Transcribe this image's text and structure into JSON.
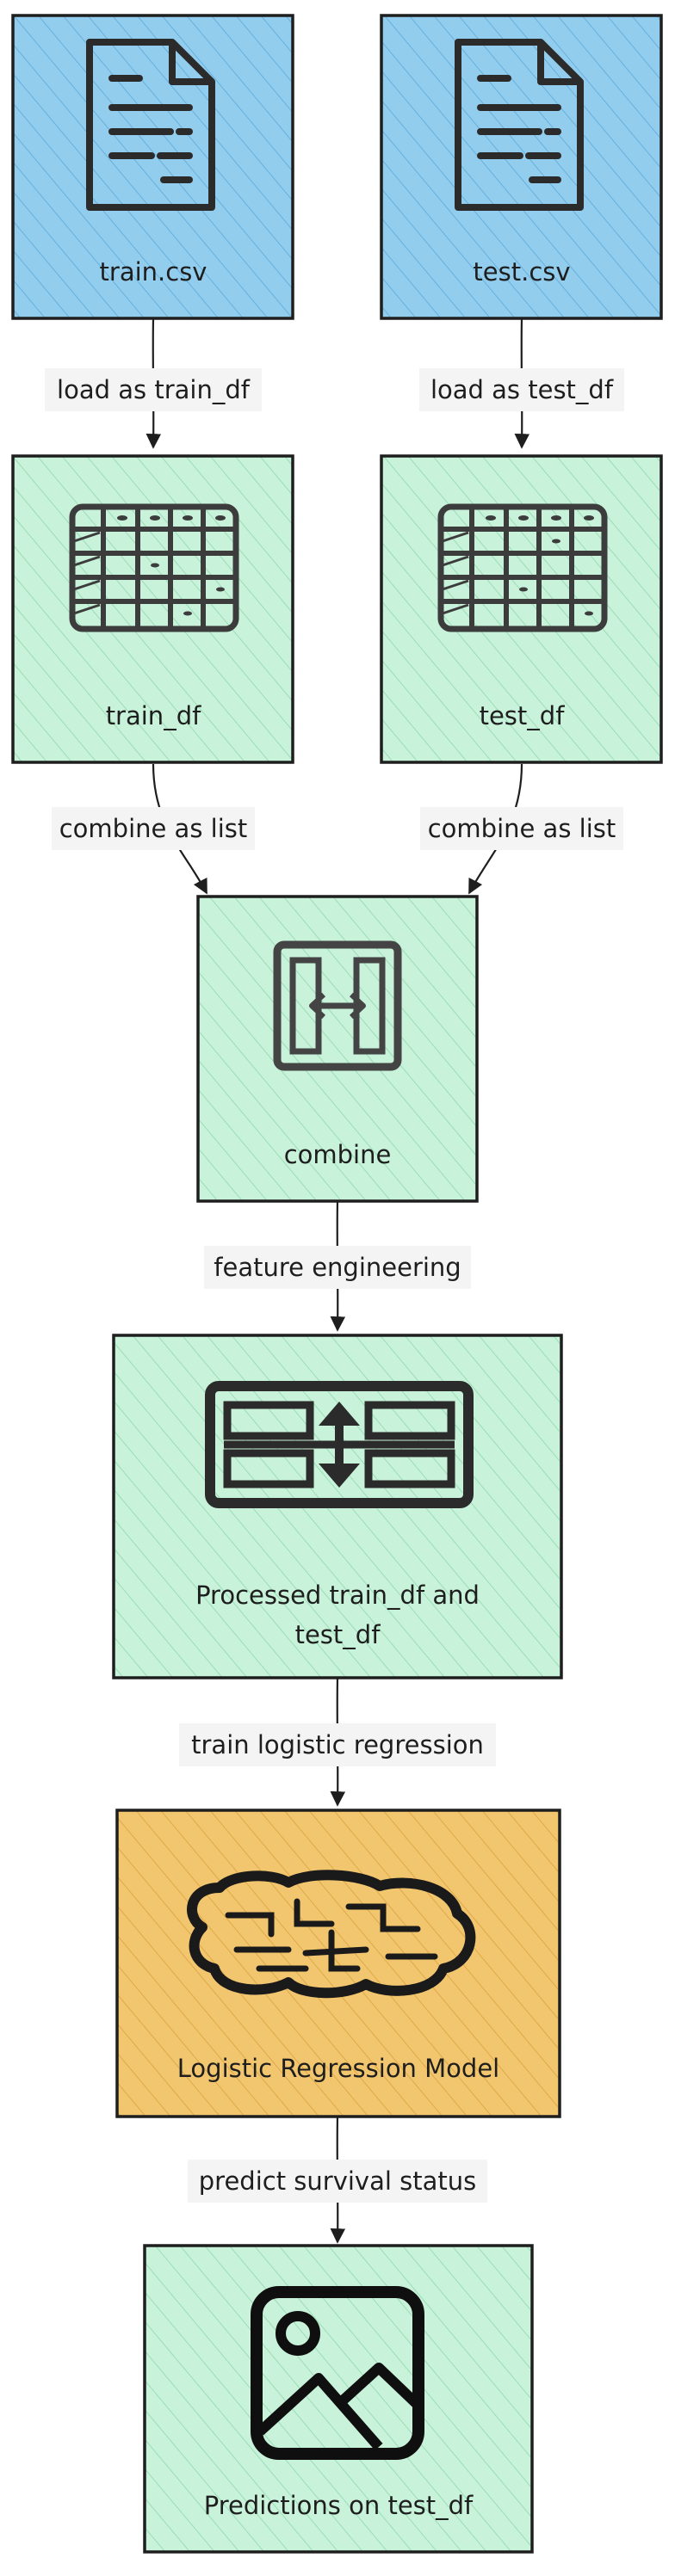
{
  "colors": {
    "file_fill": "#93cdee",
    "file_hatch": "#5aa9d8",
    "data_fill": "#c8f2da",
    "data_hatch": "#8fd8ad",
    "model_fill": "#f2c66e",
    "model_hatch": "#d9a13e",
    "stroke": "#1e1e1e",
    "label_bg": "#f4f4f4"
  },
  "nodes": {
    "train_csv": {
      "label": "train.csv",
      "icon": "document-icon"
    },
    "test_csv": {
      "label": "test.csv",
      "icon": "document-icon"
    },
    "train_df": {
      "label": "train_df",
      "icon": "table-icon"
    },
    "test_df": {
      "label": "test_df",
      "icon": "table-icon"
    },
    "combine": {
      "label": "combine",
      "icon": "merge-icon"
    },
    "processed": {
      "label_line1": "Processed train_df and",
      "label_line2": "test_df",
      "icon": "split-arrows-icon"
    },
    "model": {
      "label": "Logistic Regression Model",
      "icon": "brain-icon"
    },
    "predictions": {
      "label": "Predictions on test_df",
      "icon": "image-icon"
    }
  },
  "edges": {
    "load_train": "load as train_df",
    "load_test": "load as test_df",
    "combine_train": "combine as list",
    "combine_test": "combine as list",
    "feature_engineering": "feature engineering",
    "train_model": "train logistic regression",
    "predict": "predict survival status"
  }
}
